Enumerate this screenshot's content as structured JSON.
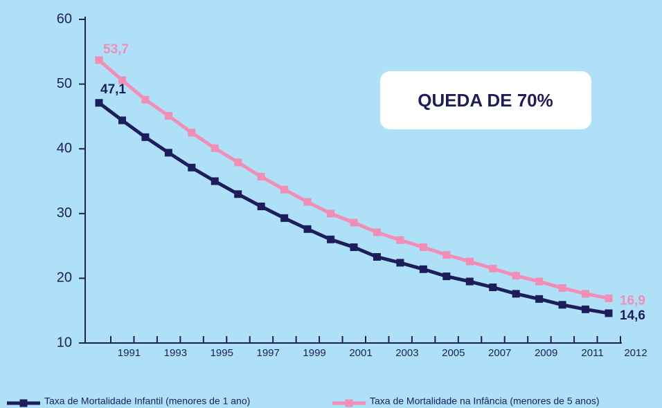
{
  "chart_data": {
    "type": "line",
    "annotation": "QUEDA DE 70%",
    "categories": [
      null,
      "1991",
      null,
      "1993",
      null,
      "1995",
      null,
      "1997",
      null,
      "1999",
      null,
      "2001",
      null,
      "2003",
      null,
      "2005",
      null,
      "2007",
      null,
      "2009",
      null,
      "2011",
      "2012"
    ],
    "series": [
      {
        "name": "Taxa de Mortalidade Infantil (menores de 1 ano)",
        "color": "#1e1d5c",
        "values": [
          47.1,
          44.4,
          41.8,
          39.4,
          37.1,
          35.0,
          33.0,
          31.1,
          29.3,
          27.6,
          26.0,
          24.8,
          23.3,
          22.4,
          21.4,
          20.3,
          19.5,
          18.6,
          17.6,
          16.8,
          15.9,
          15.2,
          14.6
        ],
        "value_labels": [
          "47,1",
          null,
          null,
          null,
          null,
          null,
          null,
          null,
          null,
          null,
          null,
          null,
          null,
          null,
          null,
          null,
          null,
          null,
          null,
          null,
          null,
          null,
          "14,6"
        ]
      },
      {
        "name": "Taxa de Mortalidade na Infância (menores de 5 anos)",
        "color": "#f28db6",
        "values": [
          53.7,
          50.6,
          47.6,
          45.1,
          42.5,
          40.1,
          37.9,
          35.7,
          33.7,
          31.8,
          30.0,
          28.6,
          27.1,
          25.9,
          24.8,
          23.6,
          22.6,
          21.5,
          20.4,
          19.5,
          18.5,
          17.6,
          16.9
        ],
        "value_labels": [
          "53,7",
          null,
          null,
          null,
          null,
          null,
          null,
          null,
          null,
          null,
          null,
          null,
          null,
          null,
          null,
          null,
          null,
          null,
          null,
          null,
          null,
          null,
          "16,9"
        ]
      }
    ],
    "ylim": [
      10,
      60
    ],
    "yticks": [
      10,
      20,
      30,
      40,
      50,
      60
    ],
    "grid": false
  }
}
